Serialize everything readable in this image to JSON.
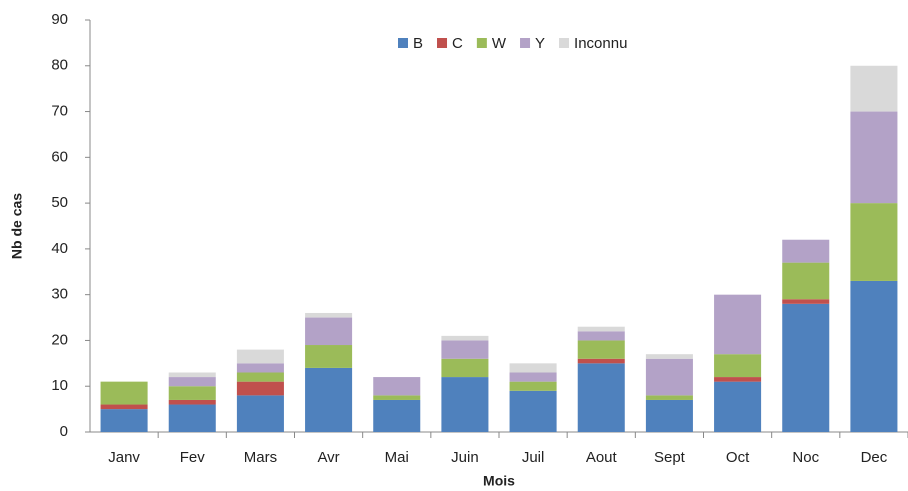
{
  "chart_data": {
    "type": "stacked-bar",
    "x_label": "Mois",
    "y_label": "Nb de cas",
    "categories": [
      "Janv",
      "Fev",
      "Mars",
      "Avr",
      "Mai",
      "Juin",
      "Juil",
      "Aout",
      "Sept",
      "Oct",
      "Noc",
      "Dec"
    ],
    "series": [
      {
        "name": "B",
        "color": "#4f81bd",
        "values": [
          5,
          6,
          8,
          14,
          7,
          12,
          9,
          15,
          7,
          11,
          28,
          33
        ]
      },
      {
        "name": "C",
        "color": "#c0504d",
        "values": [
          1,
          1,
          3,
          0,
          0,
          0,
          0,
          1,
          0,
          1,
          1,
          0
        ]
      },
      {
        "name": "W",
        "color": "#9bbb59",
        "values": [
          5,
          3,
          2,
          5,
          1,
          4,
          2,
          4,
          1,
          5,
          8,
          17
        ]
      },
      {
        "name": "Y",
        "color": "#b3a2c7",
        "values": [
          0,
          2,
          2,
          6,
          4,
          4,
          2,
          2,
          8,
          13,
          5,
          20
        ]
      },
      {
        "name": "Inconnu",
        "color": "#d9d9d9",
        "values": [
          0,
          1,
          3,
          1,
          0,
          1,
          2,
          1,
          1,
          0,
          0,
          10
        ]
      }
    ],
    "ylim": [
      0,
      90
    ],
    "yticks": [
      0,
      10,
      20,
      30,
      40,
      50,
      60,
      70,
      80,
      90
    ],
    "grid": false,
    "legend": "top"
  }
}
